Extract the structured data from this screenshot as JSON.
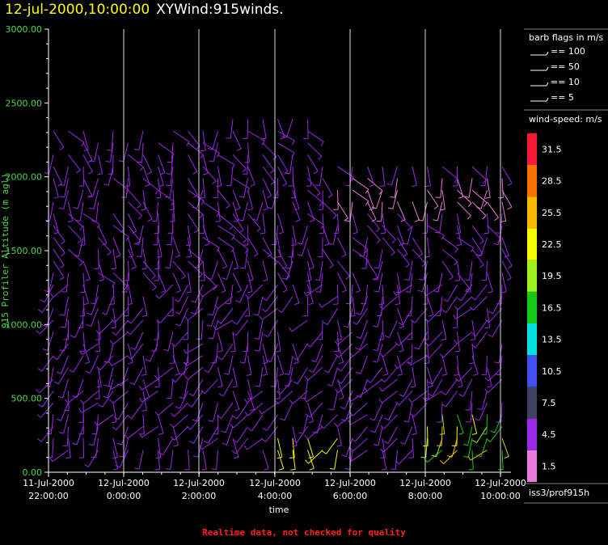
{
  "title": {
    "datetime": "12-jul-2000,10:00:00",
    "product": "XYWind:915winds."
  },
  "chart_data": {
    "type": "wind-barb",
    "ylabel": "915 Profiler Altitude (m agl)",
    "xlabel": "time",
    "ylim": [
      0,
      3000
    ],
    "yticks": [
      "0.00",
      "500.00",
      "1000.00",
      "1500.00",
      "2000.00",
      "2500.00",
      "3000.00"
    ],
    "xticks": [
      {
        "date": "11-Jul-2000",
        "time": "22:00:00"
      },
      {
        "date": "12-Jul-2000",
        "time": "0:00:00"
      },
      {
        "date": "12-Jul-2000",
        "time": "2:00:00"
      },
      {
        "date": "12-Jul-2000",
        "time": "4:00:00"
      },
      {
        "date": "12-Jul-2000",
        "time": "6:00:00"
      },
      {
        "date": "12-Jul-2000",
        "time": "8:00:00"
      },
      {
        "date": "12-Jul-2000",
        "time": "10:00:00"
      }
    ],
    "grid": true,
    "barb_legend_title": "barb flags in m/s",
    "barb_legend": [
      "== 100",
      "== 50",
      "== 10",
      "== 5"
    ],
    "speed_legend_title": "wind-speed: m/s",
    "speed_levels": [
      "1.5",
      "4.5",
      "7.5",
      "10.5",
      "13.5",
      "16.5",
      "19.5",
      "22.5",
      "25.5",
      "28.5",
      "31.5"
    ],
    "speed_colors": [
      "#e87ad8",
      "#9a28e8",
      "#404060",
      "#4050f0",
      "#00e0e0",
      "#18c818",
      "#a0f020",
      "#f8f800",
      "#f8b800",
      "#f87000",
      "#f81838"
    ],
    "station": "iss3/prof915h"
  },
  "footer": "Realtime data, not checked for quality"
}
